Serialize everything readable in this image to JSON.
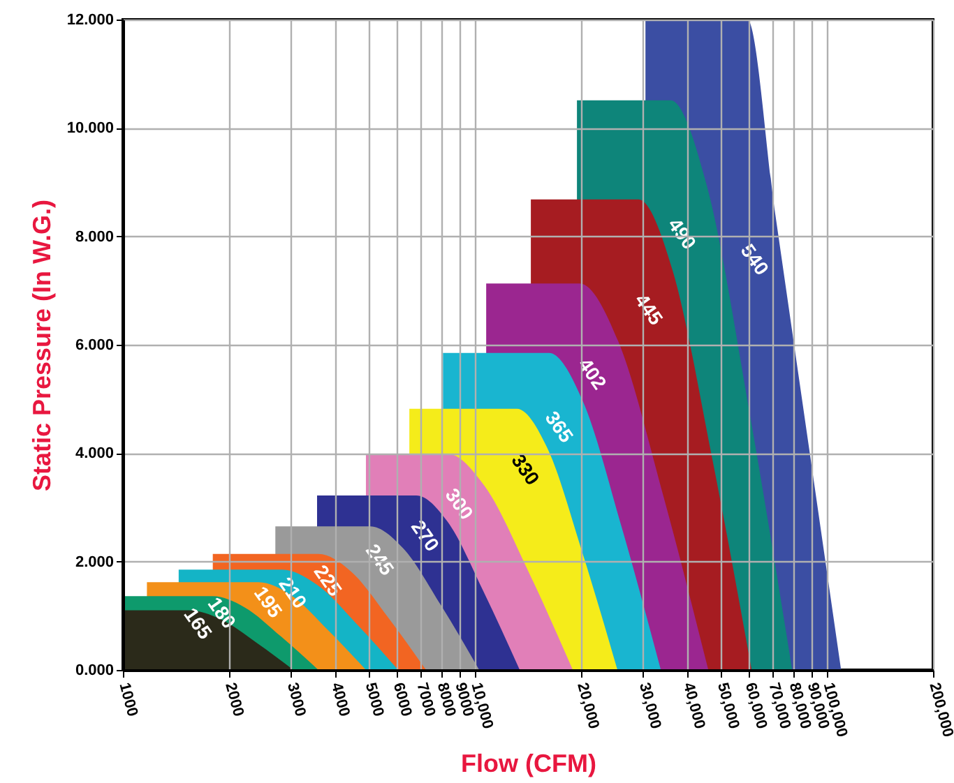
{
  "chart_data": {
    "type": "area",
    "xlabel": "Flow (CFM)",
    "ylabel": "Static Pressure (In W.G.)",
    "log": "x",
    "grid": true,
    "xlim": [
      1000,
      200000
    ],
    "xticks": [
      1000,
      2000,
      3000,
      4000,
      5000,
      6000,
      7000,
      8000,
      9000,
      {
        "value": 10000,
        "label": "10,000"
      },
      {
        "value": 20000,
        "label": "20,000"
      },
      {
        "value": 30000,
        "label": "30,000"
      },
      {
        "value": 40000,
        "label": "40,000"
      },
      {
        "value": 50000,
        "label": "50,000"
      },
      {
        "value": 60000,
        "label": "60,000"
      },
      {
        "value": 70000,
        "label": "70,000"
      },
      {
        "value": 80000,
        "label": "80,000"
      },
      {
        "value": 90000,
        "label": "90,000"
      },
      {
        "value": 100000,
        "label": "100,000"
      },
      {
        "value": 200000,
        "label": "200,000"
      }
    ],
    "ylim": [
      0,
      12
    ],
    "yticks": [
      {
        "value": 0,
        "label": "0.000"
      },
      {
        "value": 2,
        "label": "2.000"
      },
      {
        "value": 4,
        "label": "4.000"
      },
      {
        "value": 6,
        "label": "6.000"
      },
      {
        "value": 8,
        "label": "8.000"
      },
      {
        "value": 10,
        "label": "10.000"
      },
      {
        "value": 12,
        "label": "12.000"
      }
    ],
    "series": [
      {
        "name": "165",
        "color": "#2b2a1a",
        "x": [
          1000,
          1540,
          1890,
          2400,
          3050
        ],
        "values": [
          1.1,
          1.1,
          0.94,
          0.5,
          0
        ]
      },
      {
        "name": "180",
        "color": "#0e9a6c",
        "x": [
          1000,
          1800,
          2210,
          2820,
          3590
        ],
        "values": [
          1.36,
          1.36,
          1.16,
          0.61,
          0
        ]
      },
      {
        "name": "195",
        "color": "#f39019",
        "x": [
          1170,
          2430,
          3000,
          3830,
          4900
        ],
        "values": [
          1.62,
          1.62,
          1.38,
          0.73,
          0
        ]
      },
      {
        "name": "210",
        "color": "#14b4c6",
        "x": [
          1440,
          2830,
          3560,
          4640,
          6050
        ],
        "values": [
          1.85,
          1.85,
          1.57,
          0.83,
          0
        ]
      },
      {
        "name": "225",
        "color": "#f26522",
        "x": [
          1800,
          3590,
          4440,
          5680,
          7260
        ],
        "values": [
          2.14,
          2.14,
          1.82,
          0.96,
          0
        ]
      },
      {
        "name": "245",
        "color": "#9a9a9a",
        "x": [
          2710,
          5040,
          6240,
          8010,
          10280
        ],
        "values": [
          2.65,
          2.65,
          2.25,
          1.19,
          0
        ]
      },
      {
        "name": "270",
        "color": "#2e3192",
        "x": [
          3560,
          6810,
          8350,
          10570,
          13400
        ],
        "values": [
          3.22,
          3.22,
          2.74,
          1.45,
          0
        ]
      },
      {
        "name": "300",
        "color": "#e17fb8",
        "x": [
          4900,
          8330,
          10660,
          14220,
          18960
        ],
        "values": [
          3.99,
          3.99,
          3.39,
          1.8,
          0
        ]
      },
      {
        "name": "330",
        "color": "#f5ec1a",
        "x": [
          6510,
          13150,
          16030,
          20170,
          25390
        ],
        "values": [
          4.82,
          4.82,
          4.1,
          2.17,
          0
        ]
      },
      {
        "name": "365",
        "color": "#19b5d0",
        "x": [
          8110,
          16230,
          20210,
          26110,
          33720
        ],
        "values": [
          5.85,
          5.85,
          4.97,
          2.63,
          0
        ]
      },
      {
        "name": "402",
        "color": "#9b2690",
        "x": [
          10760,
          19840,
          25530,
          34280,
          46000
        ],
        "values": [
          7.13,
          7.13,
          6.06,
          3.21,
          0
        ]
      },
      {
        "name": "445",
        "color": "#a61c21",
        "x": [
          14410,
          29130,
          36370,
          47150,
          61080
        ],
        "values": [
          8.68,
          8.68,
          7.38,
          3.91,
          0
        ]
      },
      {
        "name": "490",
        "color": "#0e857a",
        "x": [
          19480,
          35940,
          45570,
          60300,
          79600
        ],
        "values": [
          10.51,
          10.51,
          8.93,
          4.73,
          0
        ]
      },
      {
        "name": "540",
        "color": "#3b4ea3",
        "x": [
          30490,
          59400,
          71300,
          88400,
          109600
        ],
        "values": [
          12,
          12,
          8.4,
          4.2,
          0
        ]
      }
    ]
  }
}
